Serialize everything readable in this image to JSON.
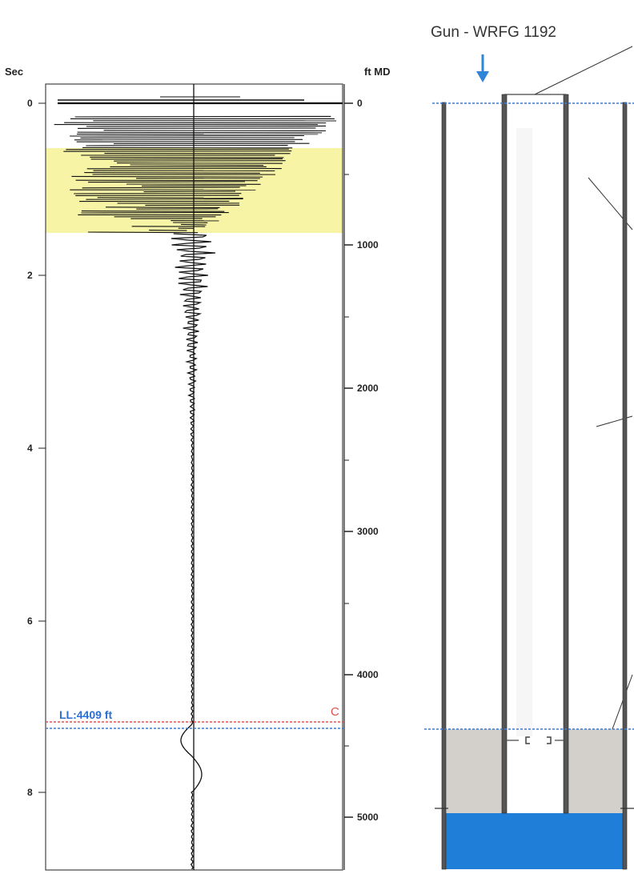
{
  "log_panel": {
    "left_axis_title": "Sec",
    "right_axis_title": "ft MD",
    "left_ticks": [
      "0",
      "2",
      "4",
      "6",
      "8"
    ],
    "right_ticks": [
      "0",
      "1000",
      "2000",
      "3000",
      "4000",
      "5000"
    ],
    "liquid_level_label": "LL:4409 ft",
    "marker_letter": "C",
    "highlight_color": "#f7f4a6",
    "liquid_level_line_color": "#3a7bd5",
    "reference_line_color": "#e05050"
  },
  "well_diagram": {
    "gun_label": "Gun - WRFG 1192",
    "gun_arrow_color": "#2f86d6",
    "fluid_color": "#d3cfca",
    "water_color": "#1f7fd8"
  }
}
